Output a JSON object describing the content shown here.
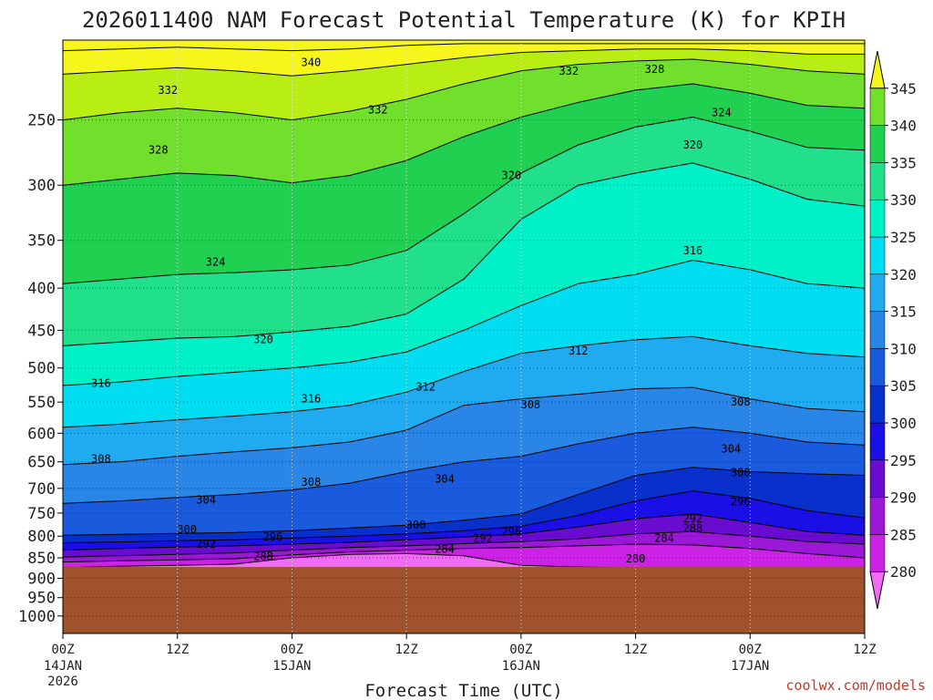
{
  "chart_data": {
    "type": "contour",
    "title": "2026011400 NAM Forecast Potential Temperature (K) for KPIH",
    "xlabel": "Forecast Time (UTC)",
    "ylabel": "",
    "credit": "coolwx.com/models",
    "x_ticks": [
      {
        "hour": 0,
        "label": "00Z",
        "sub": [
          "14JAN",
          "2026"
        ]
      },
      {
        "hour": 12,
        "label": "12Z",
        "sub": []
      },
      {
        "hour": 24,
        "label": "00Z",
        "sub": [
          "15JAN"
        ]
      },
      {
        "hour": 36,
        "label": "12Z",
        "sub": []
      },
      {
        "hour": 48,
        "label": "00Z",
        "sub": [
          "16JAN"
        ]
      },
      {
        "hour": 60,
        "label": "12Z",
        "sub": []
      },
      {
        "hour": 72,
        "label": "00Z",
        "sub": [
          "17JAN"
        ]
      },
      {
        "hour": 84,
        "label": "12Z",
        "sub": []
      }
    ],
    "xlim": [
      0,
      84
    ],
    "y_ticks": [
      250,
      300,
      350,
      400,
      450,
      500,
      550,
      600,
      650,
      700,
      750,
      800,
      850,
      900,
      950,
      1000
    ],
    "ylim": [
      200,
      1050
    ],
    "y_scale": "log",
    "grid": true,
    "ground_pressure_hpa": 872,
    "colorbar": {
      "levels": [
        280,
        285,
        290,
        295,
        300,
        305,
        310,
        315,
        320,
        325,
        330,
        335,
        340,
        345
      ],
      "colors": [
        "#f06cf5",
        "#cc22e6",
        "#9a18d6",
        "#6a0cd0",
        "#1a10e6",
        "#0a30cc",
        "#1a5adc",
        "#2a86e6",
        "#20aaf0",
        "#00dcf0",
        "#00f0c8",
        "#20e08c",
        "#20d050",
        "#70e02c",
        "#b8ee14",
        "#f6f61c"
      ],
      "ticks": [
        "280",
        "285",
        "290",
        "295",
        "300",
        "305",
        "310",
        "315",
        "320",
        "325",
        "330",
        "335",
        "340",
        "345"
      ]
    },
    "isentropes": [
      {
        "theta": 280,
        "p": [
          874,
          870,
          868,
          865,
          850,
          842,
          840,
          845,
          868,
          872,
          874,
          874,
          874,
          874,
          874
        ]
      },
      {
        "theta": 284,
        "p": [
          860,
          857,
          855,
          852,
          843,
          836,
          832,
          828,
          826,
          822,
          818,
          820,
          828,
          840,
          850
        ]
      },
      {
        "theta": 288,
        "p": [
          848,
          845,
          842,
          838,
          832,
          826,
          822,
          817,
          812,
          806,
          795,
          790,
          800,
          812,
          818
        ]
      },
      {
        "theta": 292,
        "p": [
          832,
          828,
          825,
          822,
          818,
          814,
          808,
          802,
          795,
          780,
          762,
          752,
          770,
          790,
          798
        ]
      },
      {
        "theta": 296,
        "p": [
          815,
          813,
          810,
          808,
          804,
          800,
          795,
          788,
          778,
          755,
          725,
          705,
          720,
          745,
          760
        ]
      },
      {
        "theta": 300,
        "p": [
          798,
          796,
          794,
          792,
          788,
          782,
          776,
          765,
          752,
          712,
          675,
          660,
          668,
          672,
          675
        ]
      },
      {
        "theta": 304,
        "p": [
          730,
          725,
          718,
          712,
          703,
          690,
          668,
          650,
          640,
          618,
          600,
          590,
          600,
          615,
          620
        ]
      },
      {
        "theta": 308,
        "p": [
          655,
          650,
          640,
          632,
          625,
          615,
          595,
          555,
          545,
          538,
          530,
          528,
          545,
          560,
          565
        ]
      },
      {
        "theta": 312,
        "p": [
          590,
          585,
          578,
          572,
          565,
          555,
          535,
          505,
          480,
          470,
          462,
          458,
          470,
          480,
          485
        ]
      },
      {
        "theta": 316,
        "p": [
          525,
          520,
          512,
          506,
          500,
          492,
          478,
          450,
          420,
          395,
          385,
          370,
          380,
          395,
          400
        ]
      },
      {
        "theta": 320,
        "p": [
          470,
          465,
          460,
          458,
          452,
          445,
          430,
          390,
          330,
          300,
          290,
          282,
          295,
          312,
          318
        ]
      },
      {
        "theta": 324,
        "p": [
          395,
          390,
          385,
          383,
          380,
          375,
          360,
          325,
          290,
          268,
          255,
          248,
          258,
          270,
          272
        ]
      },
      {
        "theta": 328,
        "p": [
          300,
          295,
          290,
          292,
          298,
          292,
          280,
          262,
          248,
          238,
          230,
          226,
          232,
          240,
          242
        ]
      },
      {
        "theta": 332,
        "p": [
          250,
          245,
          242,
          245,
          250,
          244,
          236,
          226,
          218,
          214,
          212,
          211,
          214,
          218,
          220
        ]
      },
      {
        "theta": 336,
        "p": [
          220,
          218,
          216,
          218,
          221,
          218,
          214,
          210,
          207,
          206,
          205,
          205,
          206,
          208,
          208
        ]
      },
      {
        "theta": 340,
        "p": [
          206,
          205,
          204,
          205,
          206,
          205,
          203,
          202,
          202,
          202,
          202,
          202,
          202,
          202,
          202
        ]
      }
    ],
    "isentrope_hours": [
      0,
      6,
      12,
      18,
      24,
      30,
      36,
      42,
      48,
      54,
      60,
      66,
      72,
      78,
      84
    ],
    "contour_labels": [
      {
        "text": "340",
        "hour": 26,
        "p": 213
      },
      {
        "text": "332",
        "hour": 11,
        "p": 230
      },
      {
        "text": "332",
        "hour": 33,
        "p": 243
      },
      {
        "text": "332",
        "hour": 53,
        "p": 218
      },
      {
        "text": "328",
        "hour": 62,
        "p": 217
      },
      {
        "text": "324",
        "hour": 69,
        "p": 245
      },
      {
        "text": "320",
        "hour": 66,
        "p": 268
      },
      {
        "text": "328",
        "hour": 10,
        "p": 272
      },
      {
        "text": "320",
        "hour": 47,
        "p": 292
      },
      {
        "text": "316",
        "hour": 66,
        "p": 360
      },
      {
        "text": "324",
        "hour": 16,
        "p": 372
      },
      {
        "text": "320",
        "hour": 21,
        "p": 462
      },
      {
        "text": "312",
        "hour": 54,
        "p": 477
      },
      {
        "text": "316",
        "hour": 4,
        "p": 522
      },
      {
        "text": "312",
        "hour": 38,
        "p": 527
      },
      {
        "text": "316",
        "hour": 26,
        "p": 545
      },
      {
        "text": "308",
        "hour": 49,
        "p": 554
      },
      {
        "text": "308",
        "hour": 71,
        "p": 550
      },
      {
        "text": "304",
        "hour": 70,
        "p": 627
      },
      {
        "text": "308",
        "hour": 4,
        "p": 645
      },
      {
        "text": "300",
        "hour": 71,
        "p": 670
      },
      {
        "text": "304",
        "hour": 40,
        "p": 682
      },
      {
        "text": "308",
        "hour": 26,
        "p": 688
      },
      {
        "text": "304",
        "hour": 15,
        "p": 723
      },
      {
        "text": "296",
        "hour": 71,
        "p": 727
      },
      {
        "text": "292",
        "hour": 66,
        "p": 762
      },
      {
        "text": "300",
        "hour": 13,
        "p": 785
      },
      {
        "text": "300",
        "hour": 37,
        "p": 775
      },
      {
        "text": "288",
        "hour": 66,
        "p": 782
      },
      {
        "text": "296",
        "hour": 47,
        "p": 790
      },
      {
        "text": "296",
        "hour": 22,
        "p": 802
      },
      {
        "text": "292",
        "hour": 44,
        "p": 805
      },
      {
        "text": "284",
        "hour": 63,
        "p": 805
      },
      {
        "text": "292",
        "hour": 15,
        "p": 818
      },
      {
        "text": "284",
        "hour": 40,
        "p": 830
      },
      {
        "text": "288",
        "hour": 21,
        "p": 847
      },
      {
        "text": "280",
        "hour": 60,
        "p": 852
      }
    ]
  }
}
